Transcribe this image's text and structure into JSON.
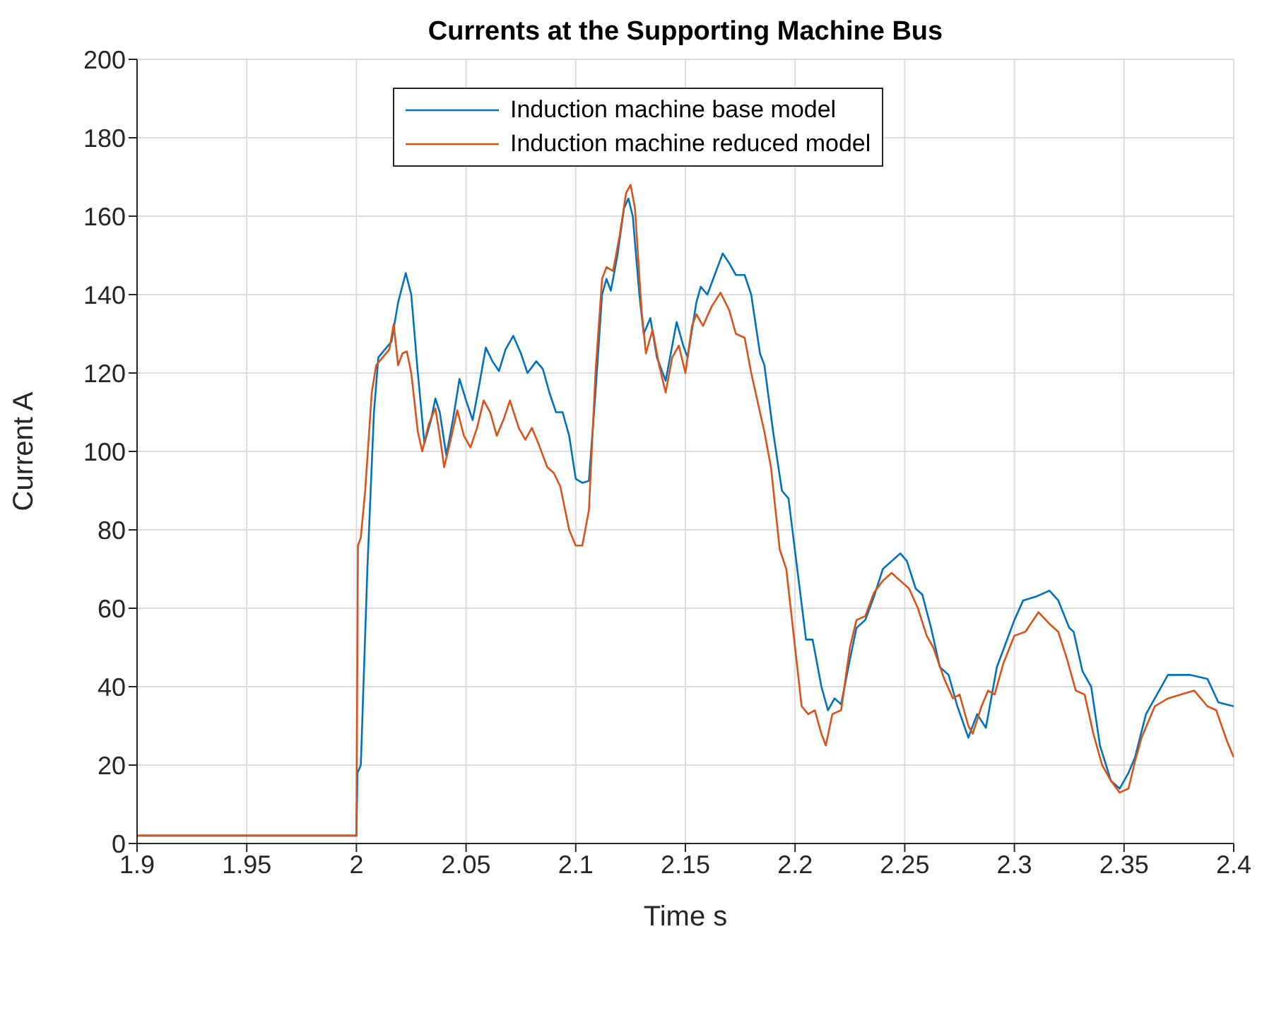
{
  "chart_data": {
    "type": "line",
    "title": "Currents at the Supporting Machine Bus",
    "xlabel": "Time s",
    "ylabel": "Current A",
    "xlim": [
      1.9,
      2.4
    ],
    "ylim": [
      0,
      200
    ],
    "xticks": [
      1.9,
      1.95,
      2,
      2.05,
      2.1,
      2.15,
      2.2,
      2.25,
      2.3,
      2.35,
      2.4
    ],
    "yticks": [
      0,
      20,
      40,
      60,
      80,
      100,
      120,
      140,
      160,
      180,
      200
    ],
    "grid": true,
    "legend": "top",
    "marker": "none",
    "line_style": "solid",
    "series": [
      {
        "name": "Induction machine base model",
        "color": "#0072bd",
        "x": [
          1.9,
          2.0,
          2.0005,
          2.002,
          2.005,
          2.008,
          2.01,
          2.013,
          2.016,
          2.019,
          2.0225,
          2.025,
          2.028,
          2.031,
          2.034,
          2.036,
          2.038,
          2.041,
          2.044,
          2.047,
          2.05,
          2.053,
          2.056,
          2.059,
          2.062,
          2.065,
          2.068,
          2.0715,
          2.075,
          2.078,
          2.082,
          2.085,
          2.088,
          2.091,
          2.094,
          2.097,
          2.1,
          2.103,
          2.106,
          2.109,
          2.112,
          2.114,
          2.116,
          2.119,
          2.122,
          2.124,
          2.126,
          2.129,
          2.131,
          2.134,
          2.137,
          2.141,
          2.144,
          2.146,
          2.149,
          2.151,
          2.155,
          2.157,
          2.16,
          2.164,
          2.167,
          2.17,
          2.173,
          2.177,
          2.18,
          2.184,
          2.186,
          2.19,
          2.194,
          2.197,
          2.201,
          2.205,
          2.208,
          2.212,
          2.215,
          2.218,
          2.221,
          2.225,
          2.228,
          2.232,
          2.236,
          2.24,
          2.244,
          2.248,
          2.251,
          2.255,
          2.258,
          2.262,
          2.266,
          2.27,
          2.274,
          2.279,
          2.283,
          2.287,
          2.292,
          2.296,
          2.3,
          2.304,
          2.31,
          2.316,
          2.32,
          2.325,
          2.327,
          2.331,
          2.335,
          2.339,
          2.344,
          2.348,
          2.352,
          2.355,
          2.36,
          2.364,
          2.37,
          2.38,
          2.388,
          2.393,
          2.4
        ],
        "values": [
          2,
          2,
          18,
          20,
          70,
          110,
          124,
          126,
          128,
          138,
          145.5,
          140,
          120,
          102,
          108,
          113.5,
          110,
          99,
          108,
          118.5,
          113,
          108,
          117,
          126.5,
          123,
          120.5,
          126,
          129.5,
          125,
          120,
          123,
          121,
          115,
          110,
          110,
          104,
          93,
          92,
          92.5,
          115,
          140,
          144,
          141,
          150,
          162,
          164.5,
          160,
          140,
          130,
          134,
          124,
          118,
          127,
          133,
          127,
          124,
          138,
          142,
          140,
          146,
          150.5,
          148,
          145,
          145,
          140,
          125,
          122,
          105,
          90,
          88,
          70,
          52,
          52,
          40,
          34,
          37,
          35.5,
          47,
          55,
          57,
          63,
          70,
          72,
          74,
          72,
          65,
          63.5,
          55,
          45,
          43,
          35,
          27,
          33,
          29.5,
          45,
          51,
          57,
          62,
          63,
          64.5,
          62,
          55,
          54,
          44,
          40,
          25,
          16,
          14,
          18,
          22,
          33,
          37,
          43,
          43,
          42,
          36,
          35
        ]
      },
      {
        "name": "Induction machine reduced model",
        "color": "#d95319",
        "x": [
          1.9,
          2.0,
          2.0007,
          2.002,
          2.004,
          2.007,
          2.009,
          2.012,
          2.015,
          2.017,
          2.019,
          2.021,
          2.023,
          2.025,
          2.028,
          2.03,
          2.033,
          2.036,
          2.038,
          2.04,
          2.043,
          2.046,
          2.049,
          2.052,
          2.055,
          2.058,
          2.061,
          2.064,
          2.067,
          2.07,
          2.074,
          2.077,
          2.08,
          2.083,
          2.087,
          2.09,
          2.093,
          2.097,
          2.1,
          2.103,
          2.106,
          2.109,
          2.112,
          2.114,
          2.117,
          2.12,
          2.123,
          2.125,
          2.127,
          2.13,
          2.132,
          2.135,
          2.138,
          2.141,
          2.144,
          2.147,
          2.15,
          2.153,
          2.155,
          2.158,
          2.162,
          2.166,
          2.17,
          2.173,
          2.177,
          2.18,
          2.184,
          2.186,
          2.189,
          2.193,
          2.196,
          2.199,
          2.203,
          2.206,
          2.209,
          2.212,
          2.214,
          2.217,
          2.221,
          2.225,
          2.228,
          2.232,
          2.236,
          2.24,
          2.244,
          2.248,
          2.252,
          2.256,
          2.26,
          2.263,
          2.268,
          2.272,
          2.275,
          2.279,
          2.281,
          2.285,
          2.288,
          2.291,
          2.295,
          2.3,
          2.305,
          2.311,
          2.316,
          2.32,
          2.324,
          2.328,
          2.332,
          2.336,
          2.34,
          2.344,
          2.348,
          2.352,
          2.355,
          2.358,
          2.364,
          2.37,
          2.376,
          2.382,
          2.388,
          2.392,
          2.397,
          2.4
        ],
        "values": [
          2,
          2,
          76,
          78,
          90,
          115,
          122,
          124,
          126,
          132.5,
          122,
          125,
          125.5,
          120,
          105,
          100,
          107,
          111,
          104,
          96,
          103,
          110.5,
          104,
          101,
          106,
          113,
          110,
          104,
          108,
          113,
          106,
          103,
          106,
          102,
          96,
          94.5,
          91,
          80,
          76,
          76,
          85,
          120,
          144,
          147,
          146,
          155,
          166,
          168,
          162,
          136,
          125,
          131,
          122,
          115,
          124,
          127,
          120,
          132,
          135,
          132,
          137,
          140.5,
          136,
          130,
          129,
          120,
          110,
          105,
          96,
          75,
          70,
          55,
          35,
          33,
          34,
          28,
          25,
          33,
          34,
          50,
          57,
          58,
          64,
          67,
          69,
          67,
          65,
          60,
          53,
          50,
          42,
          37,
          38,
          30,
          28,
          35,
          39,
          38,
          46,
          53,
          54,
          59,
          56,
          54,
          47,
          39,
          38,
          28,
          20,
          16,
          13,
          14,
          21,
          27,
          35,
          37,
          38,
          39,
          35,
          34,
          26,
          22
        ]
      }
    ]
  }
}
